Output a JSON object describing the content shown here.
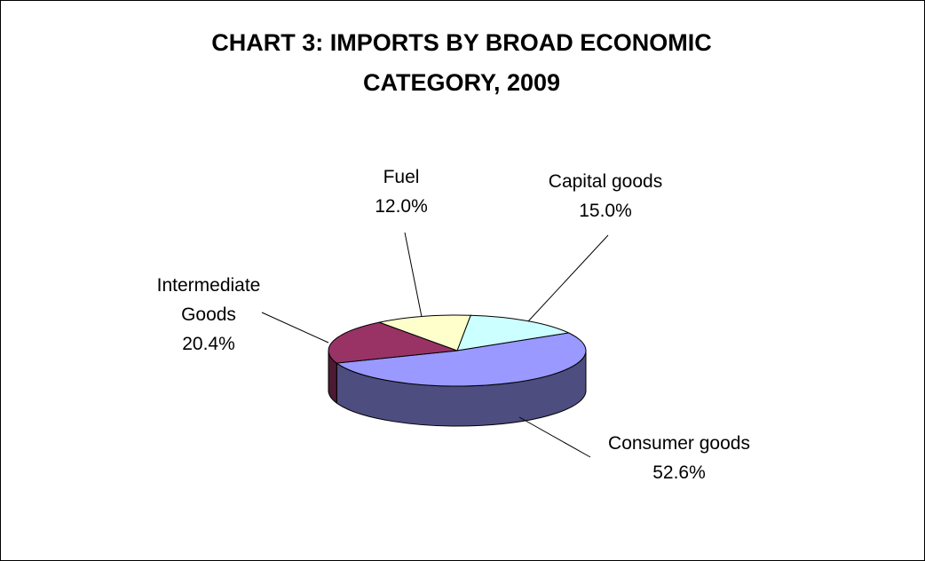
{
  "chart_data": {
    "type": "pie",
    "title": "CHART 3: IMPORTS BY BROAD ECONOMIC CATEGORY, 2009",
    "categories": [
      "Capital goods",
      "Consumer goods",
      "Intermediate Goods",
      "Fuel"
    ],
    "values": [
      15.0,
      52.6,
      20.4,
      12.0
    ],
    "value_labels": [
      "15.0%",
      "52.6%",
      "20.4%",
      "12.0%"
    ],
    "colors": [
      "#ccffff",
      "#9999ff",
      "#993366",
      "#ffffcc"
    ]
  }
}
